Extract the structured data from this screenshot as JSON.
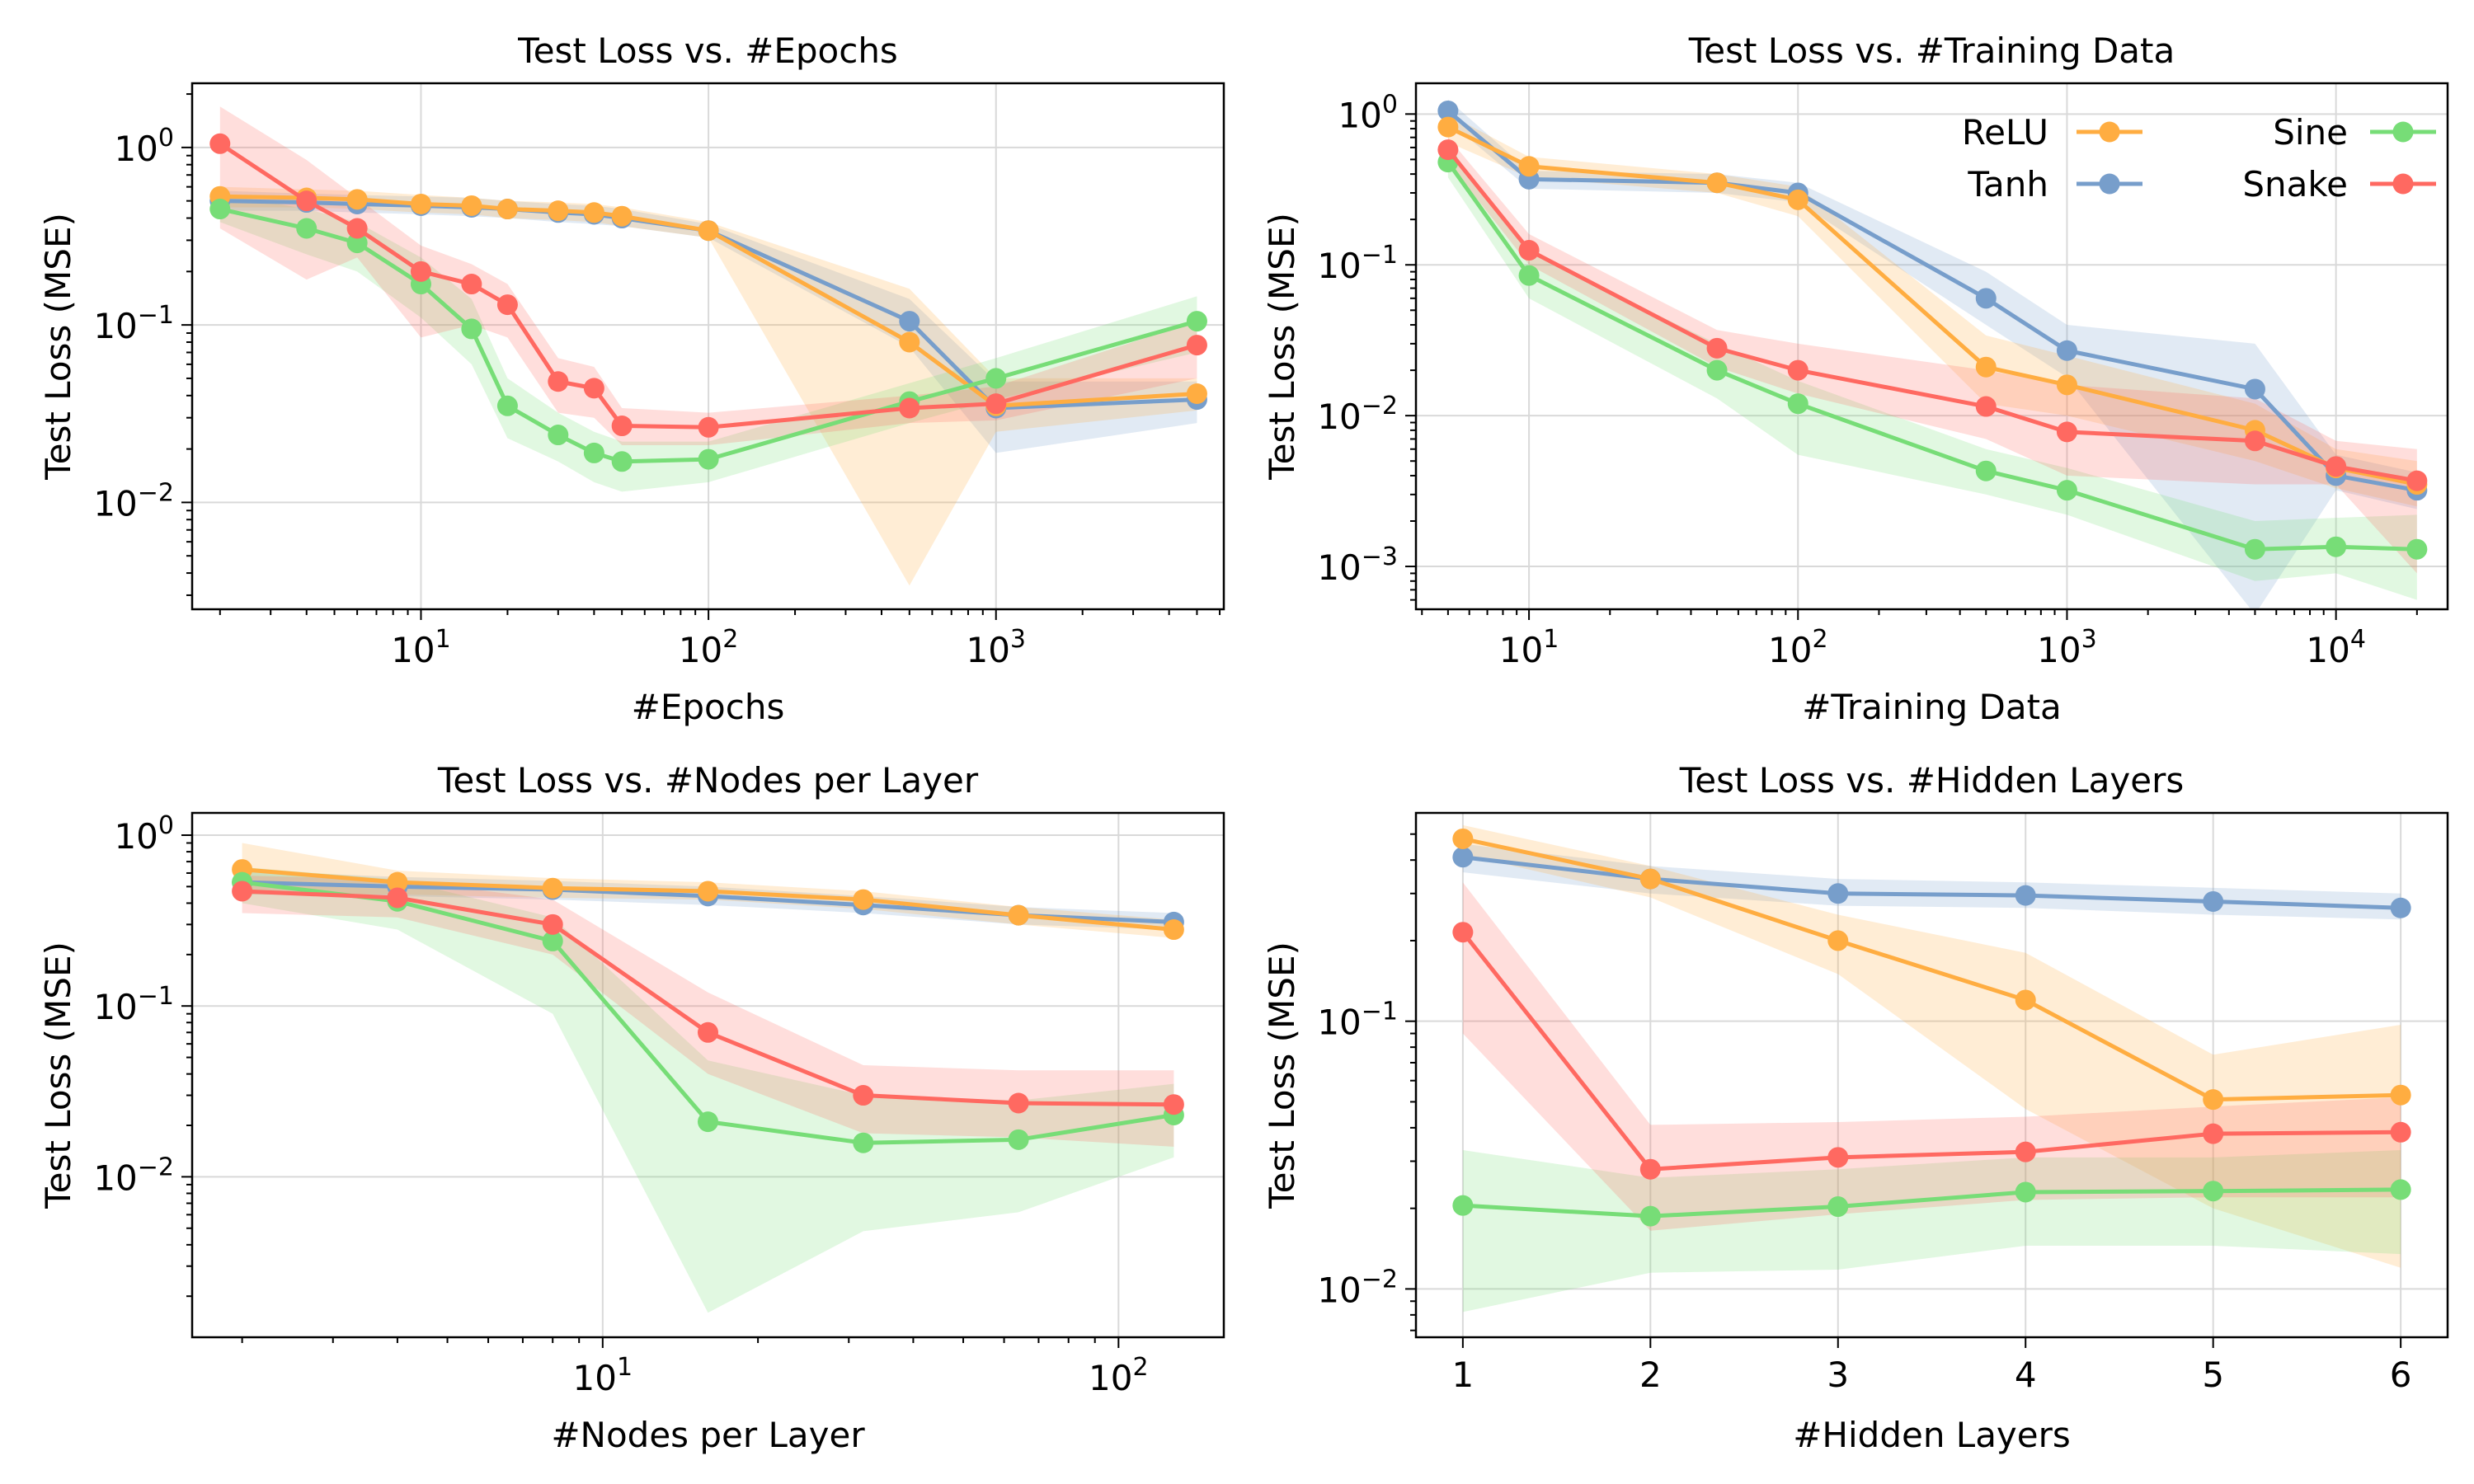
{
  "colors": {
    "ReLU": "#ffad41",
    "Tanh": "#779ecb",
    "Sine": "#77dd77",
    "Snake": "#ff6961"
  },
  "legend": {
    "entries": [
      {
        "label": "ReLU",
        "series": "ReLU"
      },
      {
        "label": "Sine",
        "series": "Sine"
      },
      {
        "label": "Tanh",
        "series": "Tanh"
      },
      {
        "label": "Snake",
        "series": "Snake"
      }
    ],
    "placement": "top-right of panel 2",
    "columns": 2
  },
  "chart_data": [
    {
      "type": "line",
      "title": "Test Loss vs. #Epochs",
      "xlabel": "#Epochs",
      "ylabel": "Test Loss (MSE)",
      "xscale": "log",
      "yscale": "log",
      "xlim": [
        1.6,
        6200
      ],
      "ylim": [
        0.0025,
        2.3
      ],
      "xticks": [
        {
          "v": 10,
          "base": "10",
          "exp": "1"
        },
        {
          "v": 100,
          "base": "10",
          "exp": "2"
        },
        {
          "v": 1000,
          "base": "10",
          "exp": "3"
        }
      ],
      "yticks": [
        {
          "v": 1,
          "base": "10",
          "exp": "0"
        },
        {
          "v": 0.1,
          "base": "10",
          "exp": "−1"
        },
        {
          "v": 0.01,
          "base": "10",
          "exp": "−2"
        }
      ],
      "grid": true,
      "series": [
        {
          "name": "ReLU",
          "x": [
            2,
            4,
            6,
            10,
            15,
            20,
            30,
            40,
            50,
            100,
            500,
            1000,
            5000
          ],
          "y": [
            0.53,
            0.52,
            0.51,
            0.48,
            0.47,
            0.45,
            0.44,
            0.43,
            0.41,
            0.34,
            0.08,
            0.035,
            0.041
          ],
          "lower": [
            0.46,
            0.46,
            0.45,
            0.43,
            0.42,
            0.4,
            0.39,
            0.38,
            0.36,
            0.31,
            0.0034,
            0.025,
            0.033
          ],
          "upper": [
            0.6,
            0.58,
            0.57,
            0.54,
            0.52,
            0.5,
            0.49,
            0.48,
            0.46,
            0.38,
            0.16,
            0.05,
            0.05
          ]
        },
        {
          "name": "Tanh",
          "x": [
            2,
            4,
            6,
            10,
            15,
            20,
            30,
            40,
            50,
            100,
            500,
            1000,
            5000
          ],
          "y": [
            0.5,
            0.49,
            0.48,
            0.47,
            0.46,
            0.45,
            0.43,
            0.42,
            0.4,
            0.34,
            0.105,
            0.034,
            0.038
          ],
          "lower": [
            0.44,
            0.44,
            0.43,
            0.42,
            0.41,
            0.4,
            0.38,
            0.37,
            0.36,
            0.31,
            0.075,
            0.019,
            0.028
          ],
          "upper": [
            0.57,
            0.55,
            0.54,
            0.53,
            0.52,
            0.5,
            0.48,
            0.47,
            0.45,
            0.37,
            0.14,
            0.048,
            0.048
          ]
        },
        {
          "name": "Sine",
          "x": [
            2,
            4,
            6,
            10,
            15,
            20,
            30,
            40,
            50,
            100,
            500,
            1000,
            5000
          ],
          "y": [
            0.45,
            0.35,
            0.29,
            0.17,
            0.095,
            0.035,
            0.024,
            0.019,
            0.017,
            0.0175,
            0.037,
            0.05,
            0.105
          ],
          "lower": [
            0.38,
            0.25,
            0.2,
            0.11,
            0.06,
            0.023,
            0.017,
            0.013,
            0.0115,
            0.013,
            0.028,
            0.038,
            0.07
          ],
          "upper": [
            0.55,
            0.45,
            0.38,
            0.24,
            0.14,
            0.05,
            0.032,
            0.025,
            0.022,
            0.022,
            0.047,
            0.065,
            0.145
          ]
        },
        {
          "name": "Snake",
          "x": [
            2,
            4,
            6,
            10,
            15,
            20,
            30,
            40,
            50,
            100,
            500,
            1000,
            5000
          ],
          "y": [
            1.05,
            0.5,
            0.35,
            0.2,
            0.17,
            0.13,
            0.048,
            0.044,
            0.027,
            0.0265,
            0.034,
            0.036,
            0.077
          ],
          "lower": [
            0.35,
            0.18,
            0.24,
            0.085,
            0.1,
            0.085,
            0.032,
            0.03,
            0.021,
            0.021,
            0.028,
            0.029,
            0.05
          ],
          "upper": [
            1.7,
            0.85,
            0.52,
            0.28,
            0.22,
            0.17,
            0.065,
            0.058,
            0.034,
            0.032,
            0.04,
            0.045,
            0.105
          ]
        }
      ]
    },
    {
      "type": "line",
      "title": "Test Loss vs. #Training Data",
      "xlabel": "#Training Data",
      "ylabel": "Test Loss (MSE)",
      "xscale": "log",
      "yscale": "log",
      "xlim": [
        3.8,
        26000
      ],
      "ylim": [
        0.00052,
        1.6
      ],
      "xticks": [
        {
          "v": 10,
          "base": "10",
          "exp": "1"
        },
        {
          "v": 100,
          "base": "10",
          "exp": "2"
        },
        {
          "v": 1000,
          "base": "10",
          "exp": "3"
        },
        {
          "v": 10000,
          "base": "10",
          "exp": "4"
        }
      ],
      "yticks": [
        {
          "v": 1,
          "base": "10",
          "exp": "0"
        },
        {
          "v": 0.1,
          "base": "10",
          "exp": "−1"
        },
        {
          "v": 0.01,
          "base": "10",
          "exp": "−2"
        },
        {
          "v": 0.001,
          "base": "10",
          "exp": "−3"
        }
      ],
      "grid": true,
      "series": [
        {
          "name": "ReLU",
          "x": [
            5,
            10,
            50,
            100,
            500,
            1000,
            5000,
            10000,
            20000
          ],
          "y": [
            0.82,
            0.45,
            0.35,
            0.27,
            0.021,
            0.016,
            0.008,
            0.0045,
            0.0035
          ],
          "lower": [
            0.65,
            0.38,
            0.3,
            0.21,
            0.012,
            0.01,
            0.005,
            0.0033,
            0.0025
          ],
          "upper": [
            1.0,
            0.52,
            0.4,
            0.33,
            0.034,
            0.025,
            0.012,
            0.006,
            0.005
          ]
        },
        {
          "name": "Tanh",
          "x": [
            5,
            10,
            50,
            100,
            500,
            1000,
            5000,
            10000,
            20000
          ],
          "y": [
            1.05,
            0.37,
            0.35,
            0.3,
            0.06,
            0.027,
            0.015,
            0.004,
            0.0032
          ],
          "lower": [
            0.9,
            0.32,
            0.3,
            0.26,
            0.04,
            0.018,
            0.00048,
            0.0032,
            0.0024
          ],
          "upper": [
            1.25,
            0.42,
            0.4,
            0.35,
            0.09,
            0.04,
            0.03,
            0.0055,
            0.0042
          ]
        },
        {
          "name": "Sine",
          "x": [
            5,
            10,
            50,
            100,
            500,
            1000,
            5000,
            10000,
            20000
          ],
          "y": [
            0.48,
            0.085,
            0.02,
            0.012,
            0.0043,
            0.0032,
            0.0013,
            0.00135,
            0.0013
          ],
          "lower": [
            0.38,
            0.06,
            0.013,
            0.0055,
            0.003,
            0.0022,
            0.0008,
            0.0009,
            0.0006
          ],
          "upper": [
            0.6,
            0.12,
            0.03,
            0.017,
            0.006,
            0.0045,
            0.002,
            0.0021,
            0.0022
          ]
        },
        {
          "name": "Snake",
          "x": [
            5,
            10,
            50,
            100,
            500,
            1000,
            5000,
            10000,
            20000
          ],
          "y": [
            0.58,
            0.125,
            0.028,
            0.02,
            0.0115,
            0.0078,
            0.0068,
            0.0046,
            0.0037
          ],
          "lower": [
            0.48,
            0.1,
            0.021,
            0.014,
            0.007,
            0.004,
            0.0035,
            0.0035,
            0.0009
          ],
          "upper": [
            0.7,
            0.16,
            0.037,
            0.03,
            0.02,
            0.016,
            0.013,
            0.0068,
            0.006
          ]
        }
      ]
    },
    {
      "type": "line",
      "title": "Test Loss vs. #Nodes per Layer",
      "xlabel": "#Nodes per Layer",
      "ylabel": "Test Loss (MSE)",
      "xscale": "log",
      "yscale": "log",
      "xlim": [
        1.6,
        160
      ],
      "ylim": [
        0.00115,
        1.35
      ],
      "xticks": [
        {
          "v": 10,
          "base": "10",
          "exp": "1"
        },
        {
          "v": 100,
          "base": "10",
          "exp": "2"
        }
      ],
      "yticks": [
        {
          "v": 1,
          "base": "10",
          "exp": "0"
        },
        {
          "v": 0.1,
          "base": "10",
          "exp": "−1"
        },
        {
          "v": 0.01,
          "base": "10",
          "exp": "−2"
        }
      ],
      "grid": true,
      "series": [
        {
          "name": "ReLU",
          "x": [
            2,
            4,
            8,
            16,
            32,
            64,
            128
          ],
          "y": [
            0.63,
            0.53,
            0.49,
            0.47,
            0.42,
            0.34,
            0.28
          ],
          "lower": [
            0.45,
            0.45,
            0.43,
            0.42,
            0.37,
            0.3,
            0.25
          ],
          "upper": [
            0.9,
            0.62,
            0.56,
            0.53,
            0.47,
            0.38,
            0.32
          ]
        },
        {
          "name": "Tanh",
          "x": [
            2,
            4,
            8,
            16,
            32,
            64,
            128
          ],
          "y": [
            0.53,
            0.5,
            0.48,
            0.44,
            0.39,
            0.34,
            0.31
          ],
          "lower": [
            0.45,
            0.44,
            0.42,
            0.39,
            0.35,
            0.3,
            0.28
          ],
          "upper": [
            0.62,
            0.57,
            0.54,
            0.5,
            0.44,
            0.38,
            0.35
          ]
        },
        {
          "name": "Sine",
          "x": [
            2,
            4,
            8,
            16,
            32,
            64,
            128
          ],
          "y": [
            0.53,
            0.41,
            0.24,
            0.021,
            0.0158,
            0.0165,
            0.023
          ],
          "lower": [
            0.4,
            0.28,
            0.09,
            0.0016,
            0.0048,
            0.0062,
            0.013
          ],
          "upper": [
            0.65,
            0.55,
            0.33,
            0.048,
            0.03,
            0.028,
            0.035
          ]
        },
        {
          "name": "Snake",
          "x": [
            2,
            4,
            8,
            16,
            32,
            64,
            128
          ],
          "y": [
            0.47,
            0.43,
            0.3,
            0.07,
            0.03,
            0.027,
            0.0265
          ],
          "lower": [
            0.35,
            0.33,
            0.2,
            0.04,
            0.018,
            0.017,
            0.015
          ],
          "upper": [
            0.58,
            0.55,
            0.42,
            0.12,
            0.045,
            0.042,
            0.042
          ]
        }
      ]
    },
    {
      "type": "line",
      "title": "Test Loss vs. #Hidden Layers",
      "xlabel": "#Hidden Layers",
      "ylabel": "Test Loss (MSE)",
      "xscale": "linear",
      "yscale": "log",
      "xlim": [
        0.75,
        6.25
      ],
      "ylim": [
        0.0066,
        0.6
      ],
      "xticks": [
        {
          "v": 1,
          "label": "1"
        },
        {
          "v": 2,
          "label": "2"
        },
        {
          "v": 3,
          "label": "3"
        },
        {
          "v": 4,
          "label": "4"
        },
        {
          "v": 5,
          "label": "5"
        },
        {
          "v": 6,
          "label": "6"
        }
      ],
      "yticks": [
        {
          "v": 0.1,
          "base": "10",
          "exp": "−1"
        },
        {
          "v": 0.01,
          "base": "10",
          "exp": "−2"
        }
      ],
      "grid": true,
      "series": [
        {
          "name": "ReLU",
          "x": [
            1,
            2,
            3,
            4,
            5,
            6
          ],
          "y": [
            0.48,
            0.34,
            0.2,
            0.12,
            0.051,
            0.053
          ],
          "lower": [
            0.42,
            0.29,
            0.15,
            0.047,
            0.02,
            0.012
          ],
          "upper": [
            0.54,
            0.38,
            0.25,
            0.18,
            0.075,
            0.097
          ]
        },
        {
          "name": "Tanh",
          "x": [
            1,
            2,
            3,
            4,
            5,
            6
          ],
          "y": [
            0.41,
            0.34,
            0.3,
            0.295,
            0.28,
            0.265
          ],
          "lower": [
            0.36,
            0.3,
            0.27,
            0.265,
            0.25,
            0.24
          ],
          "upper": [
            0.46,
            0.38,
            0.34,
            0.33,
            0.315,
            0.3
          ]
        },
        {
          "name": "Sine",
          "x": [
            1,
            2,
            3,
            4,
            5,
            6
          ],
          "y": [
            0.0205,
            0.0187,
            0.0203,
            0.023,
            0.0232,
            0.0235
          ],
          "lower": [
            0.0082,
            0.0115,
            0.0118,
            0.0145,
            0.0145,
            0.0135
          ],
          "upper": [
            0.033,
            0.026,
            0.028,
            0.031,
            0.031,
            0.033
          ]
        },
        {
          "name": "Snake",
          "x": [
            1,
            2,
            3,
            4,
            5,
            6
          ],
          "y": [
            0.215,
            0.028,
            0.031,
            0.0325,
            0.038,
            0.0385
          ],
          "lower": [
            0.09,
            0.0165,
            0.019,
            0.0215,
            0.022,
            0.022
          ],
          "upper": [
            0.33,
            0.041,
            0.042,
            0.044,
            0.048,
            0.052
          ]
        }
      ]
    }
  ]
}
